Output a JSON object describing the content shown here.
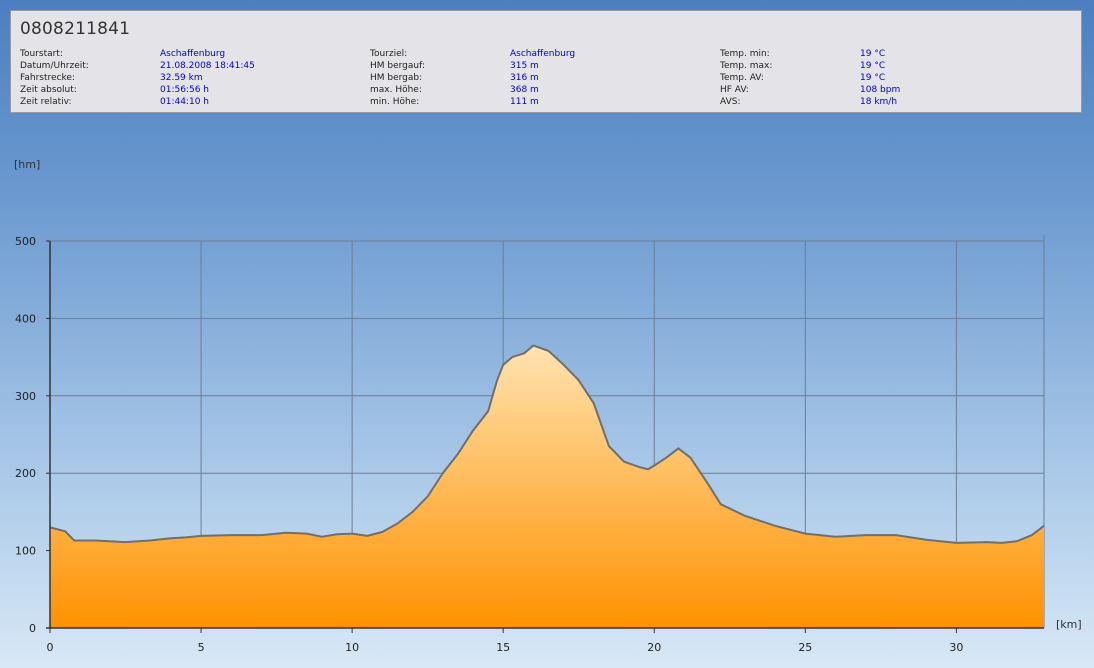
{
  "header": {
    "title": "0808211841",
    "columns": [
      [
        {
          "label": "Tourstart:",
          "value": "Aschaffenburg"
        },
        {
          "label": "Datum/Uhrzeit:",
          "value": "21.08.2008 18:41:45"
        },
        {
          "label": "Fahrstrecke:",
          "value": "32.59 km"
        },
        {
          "label": "Zeit absolut:",
          "value": "01:56:56 h"
        },
        {
          "label": "Zeit relativ:",
          "value": "01:44:10 h"
        }
      ],
      [
        {
          "label": "Tourziel:",
          "value": "Aschaffenburg"
        },
        {
          "label": "HM bergauf:",
          "value": "315 m"
        },
        {
          "label": "HM bergab:",
          "value": "316 m"
        },
        {
          "label": "max. Höhe:",
          "value": "368 m"
        },
        {
          "label": "min. Höhe:",
          "value": "111 m"
        }
      ],
      [
        {
          "label": "Temp. min:",
          "value": "19 °C"
        },
        {
          "label": "Temp. max:",
          "value": "19 °C"
        },
        {
          "label": "Temp. AV:",
          "value": "19 °C"
        },
        {
          "label": "HF AV:",
          "value": "108 bpm"
        },
        {
          "label": "AVS:",
          "value": "18 km/h"
        }
      ]
    ]
  },
  "colors": {
    "fill_top": "#ffe3b0",
    "fill_bottom": "#ff9100",
    "line": "#6f6f6f",
    "grid": "#6e7d93"
  },
  "chart_data": {
    "type": "area",
    "xlabel": "[km]",
    "ylabel": "[hm]",
    "xlim": [
      0,
      32.9
    ],
    "ylim": [
      0,
      500
    ],
    "xticks": [
      0,
      5,
      10,
      15,
      20,
      25,
      30
    ],
    "yticks": [
      0,
      100,
      200,
      300,
      400,
      500
    ],
    "grid": true,
    "x": [
      0,
      0.5,
      0.8,
      1.5,
      2.5,
      3.3,
      4.0,
      4.5,
      5.0,
      6.0,
      7.0,
      7.8,
      8.5,
      9.0,
      9.5,
      10.0,
      10.5,
      11.0,
      11.5,
      12.0,
      12.5,
      13.0,
      13.5,
      14.0,
      14.5,
      14.8,
      15.0,
      15.3,
      15.7,
      16.0,
      16.5,
      17.0,
      17.5,
      18.0,
      18.5,
      19.0,
      19.5,
      19.8,
      20.0,
      20.4,
      20.8,
      21.2,
      21.8,
      22.2,
      23.0,
      24.0,
      25.0,
      26.0,
      27.0,
      28.0,
      29.0,
      30.0,
      31.0,
      31.5,
      32.0,
      32.5,
      32.9
    ],
    "values": [
      130,
      125,
      113,
      113,
      111,
      113,
      116,
      117,
      119,
      120,
      120,
      123,
      122,
      118,
      121,
      122,
      119,
      124,
      135,
      150,
      170,
      200,
      225,
      255,
      280,
      320,
      340,
      350,
      355,
      365,
      358,
      340,
      320,
      290,
      235,
      215,
      208,
      205,
      210,
      220,
      232,
      220,
      185,
      160,
      145,
      132,
      122,
      118,
      120,
      120,
      114,
      110,
      111,
      110,
      112,
      120,
      132
    ]
  }
}
